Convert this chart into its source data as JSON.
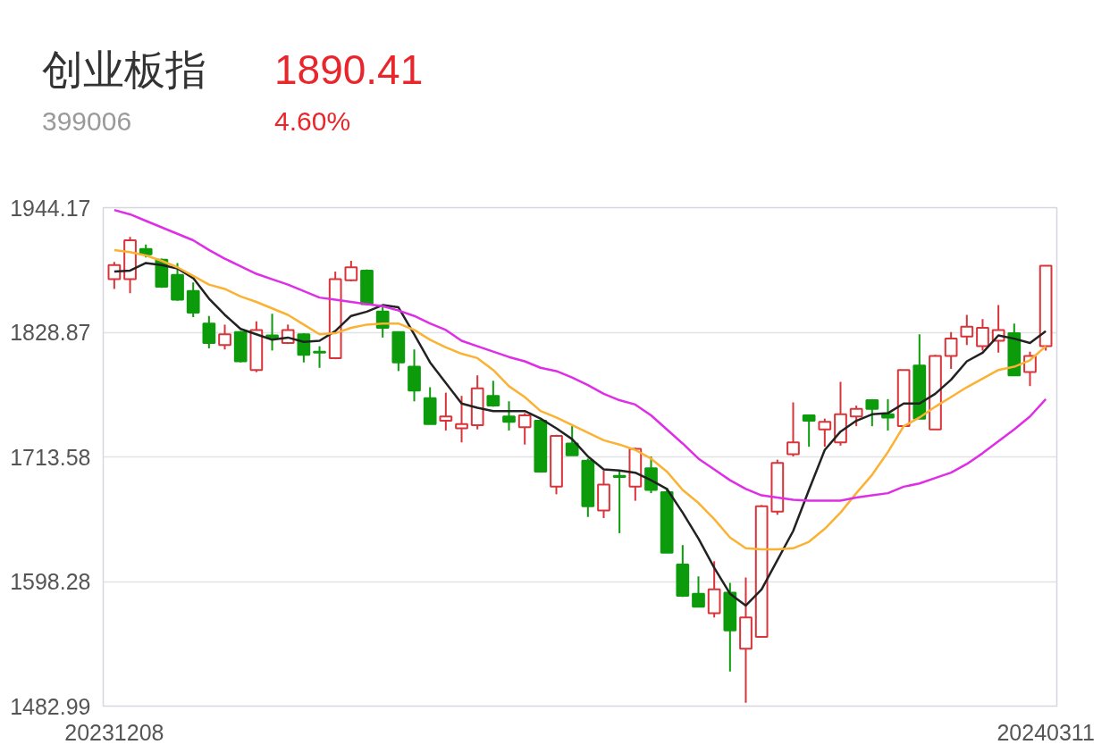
{
  "chart_data": {
    "type": "candlestick",
    "title": "创业板指",
    "subtitle": "399006",
    "annotations": [
      "1890.41",
      "4.60%"
    ],
    "categories": [
      "20231208",
      null,
      null,
      null,
      null,
      null,
      null,
      null,
      null,
      null,
      null,
      null,
      null,
      null,
      null,
      null,
      null,
      null,
      null,
      null,
      null,
      null,
      null,
      null,
      null,
      null,
      null,
      null,
      null,
      null,
      null,
      null,
      null,
      null,
      null,
      null,
      null,
      null,
      null,
      null,
      null,
      null,
      null,
      null,
      null,
      null,
      null,
      null,
      null,
      null,
      null,
      null,
      null,
      null,
      null,
      null,
      null,
      null,
      null,
      "20240311"
    ],
    "ohlc": [
      [
        1878,
        1894,
        1869,
        1891
      ],
      [
        1878,
        1917,
        1865,
        1914
      ],
      [
        1906,
        1910,
        1898,
        1901
      ],
      [
        1896,
        1897,
        1870,
        1871
      ],
      [
        1882,
        1893,
        1858,
        1859
      ],
      [
        1867,
        1875,
        1843,
        1847
      ],
      [
        1837,
        1844,
        1814,
        1819
      ],
      [
        1817,
        1836,
        1813,
        1827
      ],
      [
        1829,
        1830,
        1801,
        1802
      ],
      [
        1794,
        1839,
        1792,
        1831
      ],
      [
        1826,
        1846,
        1812,
        1824
      ],
      [
        1819,
        1836,
        1818,
        1831
      ],
      [
        1827,
        1828,
        1801,
        1808
      ],
      [
        1811,
        1816,
        1796,
        1810
      ],
      [
        1805,
        1885,
        1804,
        1878
      ],
      [
        1877,
        1895,
        1876,
        1889
      ],
      [
        1886,
        1887,
        1854,
        1855
      ],
      [
        1848,
        1853,
        1824,
        1833
      ],
      [
        1829,
        1829,
        1793,
        1801
      ],
      [
        1797,
        1813,
        1765,
        1775
      ],
      [
        1768,
        1778,
        1744,
        1744
      ],
      [
        1747,
        1773,
        1738,
        1751
      ],
      [
        1740,
        1770,
        1727,
        1744
      ],
      [
        1743,
        1789,
        1739,
        1777
      ],
      [
        1770,
        1784,
        1760,
        1761
      ],
      [
        1751,
        1765,
        1738,
        1746
      ],
      [
        1741,
        1754,
        1725,
        1752
      ],
      [
        1747,
        1747,
        1700,
        1700
      ],
      [
        1686,
        1734,
        1679,
        1733
      ],
      [
        1726,
        1742,
        1715,
        1715
      ],
      [
        1710,
        1712,
        1658,
        1668
      ],
      [
        1664,
        1701,
        1657,
        1688
      ],
      [
        1696,
        1700,
        1643,
        1695
      ],
      [
        1686,
        1722,
        1673,
        1721
      ],
      [
        1703,
        1714,
        1680,
        1683
      ],
      [
        1681,
        1685,
        1625,
        1625
      ],
      [
        1614,
        1632,
        1584,
        1585
      ],
      [
        1587,
        1603,
        1575,
        1575
      ],
      [
        1569,
        1617,
        1565,
        1591
      ],
      [
        1588,
        1597,
        1515,
        1553
      ],
      [
        1536,
        1602,
        1486,
        1565
      ],
      [
        1547,
        1669,
        1547,
        1668
      ],
      [
        1663,
        1711,
        1660,
        1708
      ],
      [
        1716,
        1764,
        1714,
        1727
      ],
      [
        1752,
        1752,
        1723,
        1747
      ],
      [
        1739,
        1749,
        1723,
        1746
      ],
      [
        1727,
        1783,
        1724,
        1753
      ],
      [
        1751,
        1761,
        1742,
        1758
      ],
      [
        1766,
        1767,
        1742,
        1758
      ],
      [
        1753,
        1767,
        1738,
        1750
      ],
      [
        1742,
        1794,
        1742,
        1794
      ],
      [
        1798,
        1827,
        1749,
        1749
      ],
      [
        1739,
        1808,
        1739,
        1807
      ],
      [
        1807,
        1829,
        1795,
        1823
      ],
      [
        1825,
        1845,
        1817,
        1834
      ],
      [
        1816,
        1841,
        1812,
        1833
      ],
      [
        1821,
        1854,
        1810,
        1831
      ],
      [
        1828,
        1837,
        1789,
        1789
      ],
      [
        1792,
        1811,
        1779,
        1807
      ],
      [
        1816,
        1890.41,
        1812,
        1890.41
      ]
    ],
    "colors": [
      "#d8343a",
      "#d8343a",
      "#0b9b0b",
      "#0b9b0b",
      "#0b9b0b",
      "#0b9b0b",
      "#0b9b0b",
      "#d8343a",
      "#0b9b0b",
      "#d8343a",
      "#0b9b0b",
      "#d8343a",
      "#0b9b0b",
      "#0b9b0b",
      "#d8343a",
      "#d8343a",
      "#0b9b0b",
      "#0b9b0b",
      "#0b9b0b",
      "#0b9b0b",
      "#0b9b0b",
      "#d8343a",
      "#d8343a",
      "#d8343a",
      "#0b9b0b",
      "#0b9b0b",
      "#d8343a",
      "#0b9b0b",
      "#d8343a",
      "#0b9b0b",
      "#0b9b0b",
      "#d8343a",
      "#0b9b0b",
      "#d8343a",
      "#0b9b0b",
      "#0b9b0b",
      "#0b9b0b",
      "#0b9b0b",
      "#d8343a",
      "#0b9b0b",
      "#d8343a",
      "#d8343a",
      "#d8343a",
      "#d8343a",
      "#0b9b0b",
      "#d8343a",
      "#d8343a",
      "#d8343a",
      "#0b9b0b",
      "#0b9b0b",
      "#d8343a",
      "#0b9b0b",
      "#d8343a",
      "#d8343a",
      "#d8343a",
      "#d8343a",
      "#d8343a",
      "#0b9b0b",
      "#d8343a",
      "#d8343a"
    ],
    "series": [
      {
        "type": "line",
        "color": "#222222",
        "values": [
          1885,
          1886,
          1893,
          1891,
          1888,
          1879,
          1860,
          1845,
          1832,
          1827,
          1822,
          1824,
          1820,
          1821,
          1830,
          1844,
          1848,
          1854,
          1852,
          1827,
          1801,
          1782,
          1763,
          1759,
          1756,
          1756,
          1756,
          1749,
          1740,
          1730,
          1714,
          1702,
          1701,
          1699,
          1692,
          1684,
          1662,
          1638,
          1611,
          1587,
          1576,
          1591,
          1618,
          1645,
          1683,
          1720,
          1737,
          1747,
          1753,
          1754,
          1763,
          1763,
          1772,
          1785,
          1802,
          1810,
          1826,
          1823,
          1819,
          1830
        ]
      },
      {
        "type": "line",
        "color": "#fbb233",
        "values": [
          1905,
          1903,
          1900,
          1895,
          1889,
          1881,
          1873,
          1869,
          1862,
          1857,
          1851,
          1845,
          1836,
          1827,
          1828,
          1833,
          1836,
          1837,
          1837,
          1831,
          1822,
          1815,
          1809,
          1805,
          1794,
          1779,
          1769,
          1756,
          1750,
          1743,
          1736,
          1729,
          1725,
          1720,
          1712,
          1700,
          1683,
          1671,
          1656,
          1639,
          1629,
          1628,
          1628,
          1629,
          1635,
          1647,
          1662,
          1680,
          1697,
          1718,
          1742,
          1750,
          1760,
          1769,
          1778,
          1786,
          1794,
          1797,
          1803,
          1816
        ]
      },
      {
        "type": "line",
        "color": "#de2ee6",
        "values": [
          1942,
          1938,
          1932,
          1926,
          1920,
          1914,
          1905,
          1897,
          1890,
          1883,
          1878,
          1873,
          1867,
          1861,
          1859,
          1857,
          1855,
          1853,
          1849,
          1844,
          1837,
          1831,
          1821,
          1816,
          1811,
          1806,
          1802,
          1796,
          1793,
          1787,
          1780,
          1772,
          1766,
          1762,
          1752,
          1739,
          1726,
          1712,
          1702,
          1692,
          1684,
          1678,
          1676,
          1674,
          1673,
          1673,
          1673,
          1676,
          1678,
          1680,
          1686,
          1689,
          1694,
          1699,
          1707,
          1717,
          1728,
          1739,
          1751,
          1767
        ]
      }
    ],
    "ylim": [
      1482.99,
      1944.17
    ],
    "yticks": [
      1482.99,
      1598.28,
      1713.58,
      1828.87,
      1944.17
    ],
    "grid": "y"
  }
}
